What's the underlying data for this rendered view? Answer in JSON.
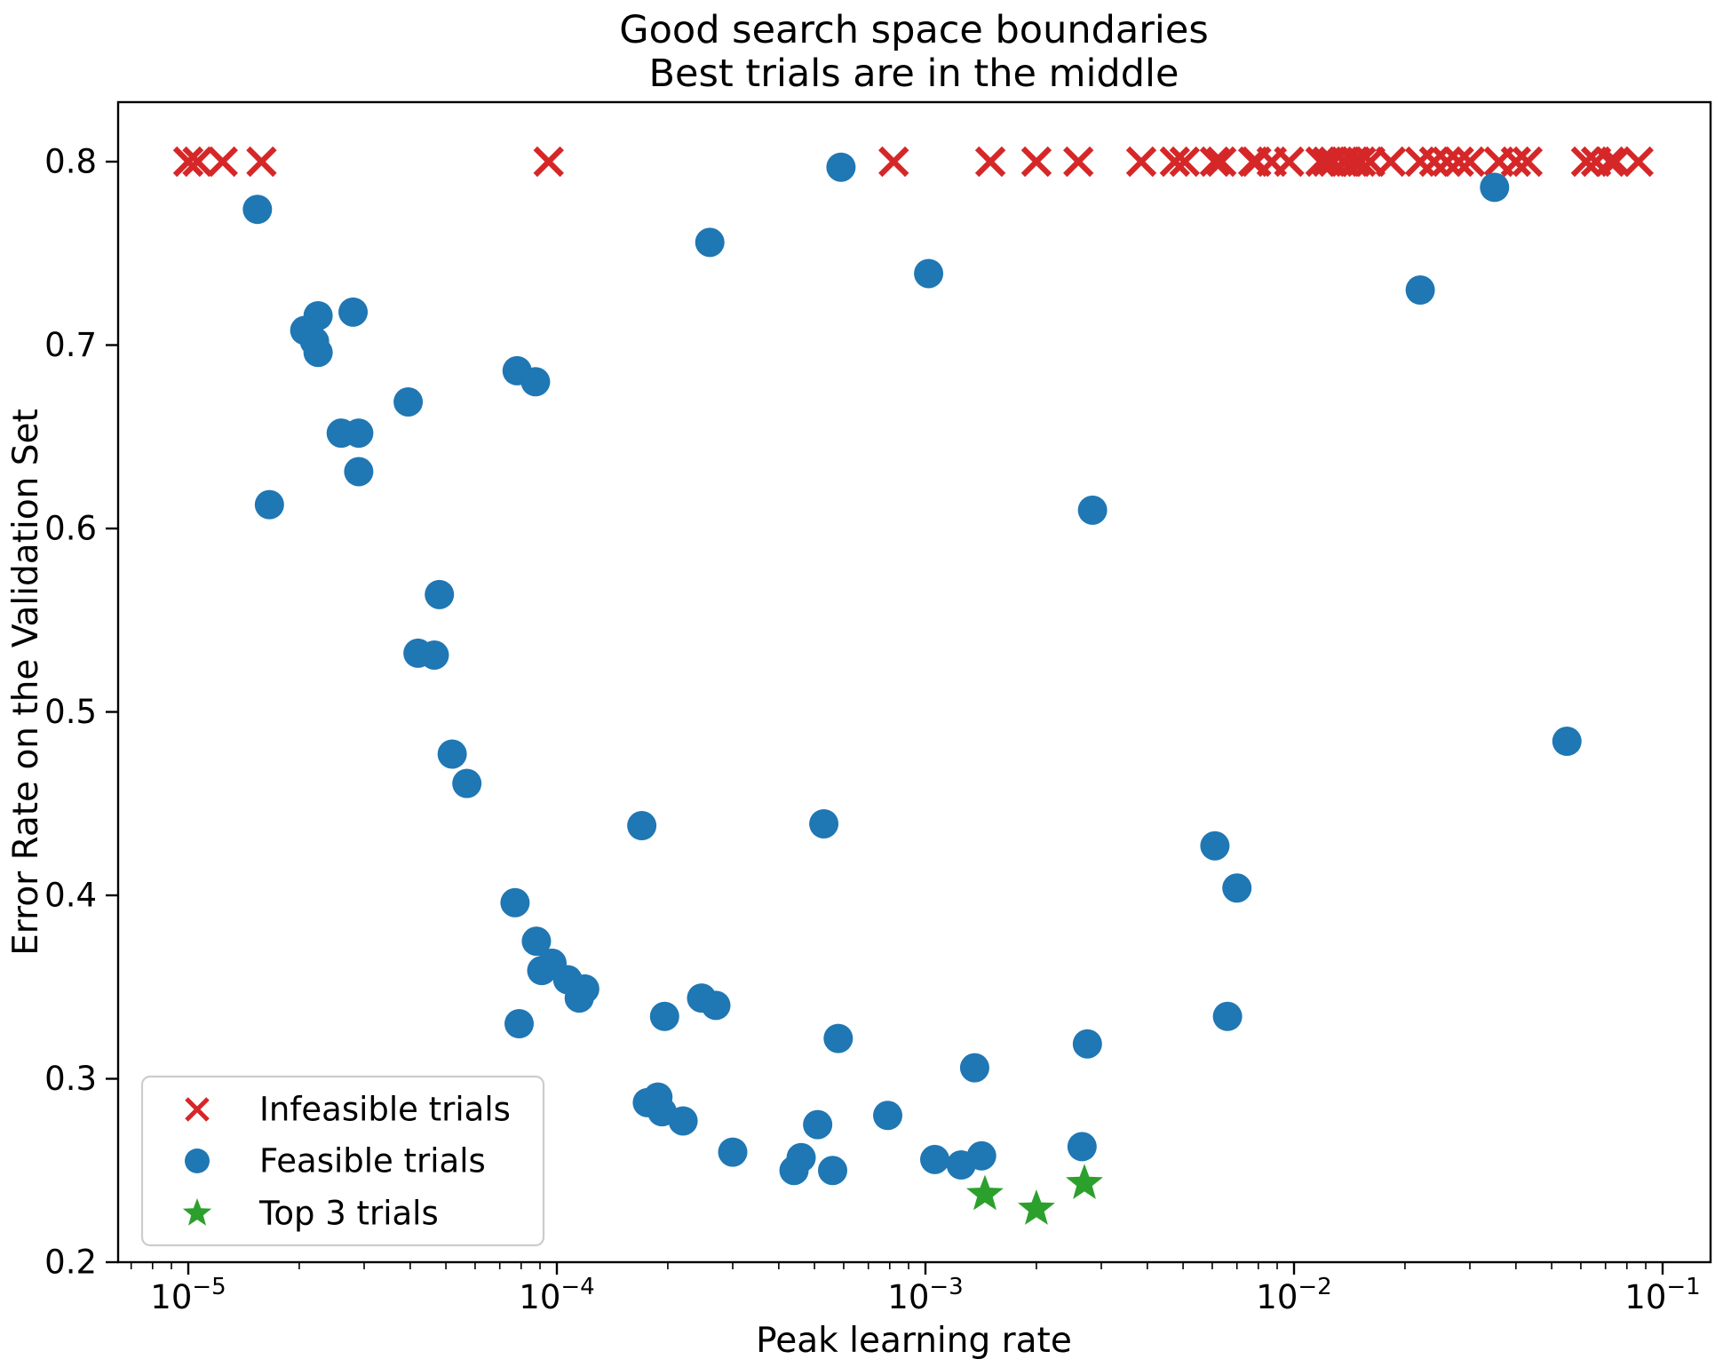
{
  "title": {
    "line1": "Good search space boundaries",
    "line2": "Best trials are in the middle"
  },
  "axes": {
    "xlabel": "Peak learning rate",
    "ylabel": "Error Rate on the Validation Set",
    "x_scale": "log",
    "y_scale": "linear"
  },
  "legend": {
    "position": "lower-left",
    "items": [
      {
        "label": "Infeasible trials",
        "marker": "x",
        "color": "#d62728"
      },
      {
        "label": "Feasible trials",
        "marker": "circle",
        "color": "#1f77b4"
      },
      {
        "label": "Top 3 trials",
        "marker": "star",
        "color": "#2ca02c"
      }
    ]
  },
  "chart_data": {
    "type": "scatter",
    "title": "Good search space boundaries\nBest trials are in the middle",
    "xlabel": "Peak learning rate",
    "ylabel": "Error Rate on the Validation Set",
    "xlim": [
      6.5e-06,
      0.135
    ],
    "ylim": [
      0.2,
      0.832
    ],
    "grid": false,
    "x_ticks": [
      {
        "value": 1e-05,
        "base": "10",
        "exp": "−5"
      },
      {
        "value": 0.0001,
        "base": "10",
        "exp": "−4"
      },
      {
        "value": 0.001,
        "base": "10",
        "exp": "−3"
      },
      {
        "value": 0.01,
        "base": "10",
        "exp": "−2"
      },
      {
        "value": 0.1,
        "base": "10",
        "exp": "−1"
      }
    ],
    "y_ticks": [
      0.2,
      0.3,
      0.4,
      0.5,
      0.6,
      0.7,
      0.8
    ],
    "series": [
      {
        "name": "Infeasible trials",
        "marker": "x",
        "color": "#d62728",
        "y_constant": 0.8,
        "points": [
          [
            1e-05,
            0.8
          ],
          [
            1.06e-05,
            0.8
          ],
          [
            1.24e-05,
            0.8
          ],
          [
            1.58e-05,
            0.8
          ],
          [
            9.5e-05,
            0.8
          ],
          [
            0.00082,
            0.8
          ],
          [
            0.0015,
            0.8
          ],
          [
            0.002,
            0.8
          ],
          [
            0.0026,
            0.8
          ],
          [
            0.00385,
            0.8
          ],
          [
            0.00475,
            0.8
          ],
          [
            0.00505,
            0.8
          ],
          [
            0.0061,
            0.8
          ],
          [
            0.00635,
            0.8
          ],
          [
            0.00775,
            0.8
          ],
          [
            0.0079,
            0.8
          ],
          [
            0.0087,
            0.8
          ],
          [
            0.0097,
            0.8
          ],
          [
            0.0118,
            0.8
          ],
          [
            0.0123,
            0.8
          ],
          [
            0.0128,
            0.8
          ],
          [
            0.0136,
            0.8
          ],
          [
            0.0138,
            0.8
          ],
          [
            0.0145,
            0.8
          ],
          [
            0.0147,
            0.8
          ],
          [
            0.0152,
            0.8
          ],
          [
            0.0161,
            0.8
          ],
          [
            0.0183,
            0.8
          ],
          [
            0.022,
            0.8
          ],
          [
            0.024,
            0.8
          ],
          [
            0.026,
            0.8
          ],
          [
            0.028,
            0.8
          ],
          [
            0.03,
            0.8
          ],
          [
            0.036,
            0.8
          ],
          [
            0.04,
            0.8
          ],
          [
            0.043,
            0.8
          ],
          [
            0.062,
            0.8
          ],
          [
            0.066,
            0.8
          ],
          [
            0.072,
            0.8
          ],
          [
            0.0745,
            0.8
          ],
          [
            0.086,
            0.8
          ]
        ]
      },
      {
        "name": "Feasible trials",
        "marker": "circle",
        "color": "#1f77b4",
        "points": [
          [
            1.54e-05,
            0.774
          ],
          [
            1.66e-05,
            0.613
          ],
          [
            2.07e-05,
            0.708
          ],
          [
            2.2e-05,
            0.702
          ],
          [
            2.25e-05,
            0.696
          ],
          [
            2.25e-05,
            0.716
          ],
          [
            2.8e-05,
            0.718
          ],
          [
            2.6e-05,
            0.652
          ],
          [
            2.9e-05,
            0.652
          ],
          [
            2.9e-05,
            0.631
          ],
          [
            3.95e-05,
            0.669
          ],
          [
            4.2e-05,
            0.532
          ],
          [
            4.65e-05,
            0.531
          ],
          [
            4.8e-05,
            0.564
          ],
          [
            5.2e-05,
            0.477
          ],
          [
            5.7e-05,
            0.461
          ],
          [
            7.8e-05,
            0.686
          ],
          [
            8.75e-05,
            0.68
          ],
          [
            7.7e-05,
            0.396
          ],
          [
            8.8e-05,
            0.375
          ],
          [
            9.1e-05,
            0.359
          ],
          [
            9.7e-05,
            0.363
          ],
          [
            0.000107,
            0.354
          ],
          [
            0.000115,
            0.344
          ],
          [
            0.000119,
            0.349
          ],
          [
            7.9e-05,
            0.33
          ],
          [
            0.000196,
            0.334
          ],
          [
            0.000247,
            0.344
          ],
          [
            0.00027,
            0.34
          ],
          [
            0.00017,
            0.438
          ],
          [
            0.00053,
            0.439
          ],
          [
            0.000176,
            0.287
          ],
          [
            0.000188,
            0.29
          ],
          [
            0.000193,
            0.282
          ],
          [
            0.00022,
            0.277
          ],
          [
            0.0003,
            0.26
          ],
          [
            0.00044,
            0.25
          ],
          [
            0.00046,
            0.257
          ],
          [
            0.00056,
            0.25
          ],
          [
            0.00051,
            0.275
          ],
          [
            0.00079,
            0.28
          ],
          [
            0.00058,
            0.322
          ],
          [
            0.00059,
            0.797
          ],
          [
            0.00026,
            0.756
          ],
          [
            0.00102,
            0.739
          ],
          [
            0.00106,
            0.256
          ],
          [
            0.00125,
            0.253
          ],
          [
            0.00142,
            0.258
          ],
          [
            0.00136,
            0.306
          ],
          [
            0.00266,
            0.263
          ],
          [
            0.00275,
            0.319
          ],
          [
            0.00284,
            0.61
          ],
          [
            0.0061,
            0.427
          ],
          [
            0.007,
            0.404
          ],
          [
            0.0066,
            0.334
          ],
          [
            0.022,
            0.73
          ],
          [
            0.035,
            0.786
          ],
          [
            0.055,
            0.484
          ]
        ]
      },
      {
        "name": "Top 3 trials",
        "marker": "star",
        "color": "#2ca02c",
        "points": [
          [
            0.00145,
            0.237
          ],
          [
            0.002,
            0.229
          ],
          [
            0.0027,
            0.243
          ]
        ]
      }
    ]
  }
}
